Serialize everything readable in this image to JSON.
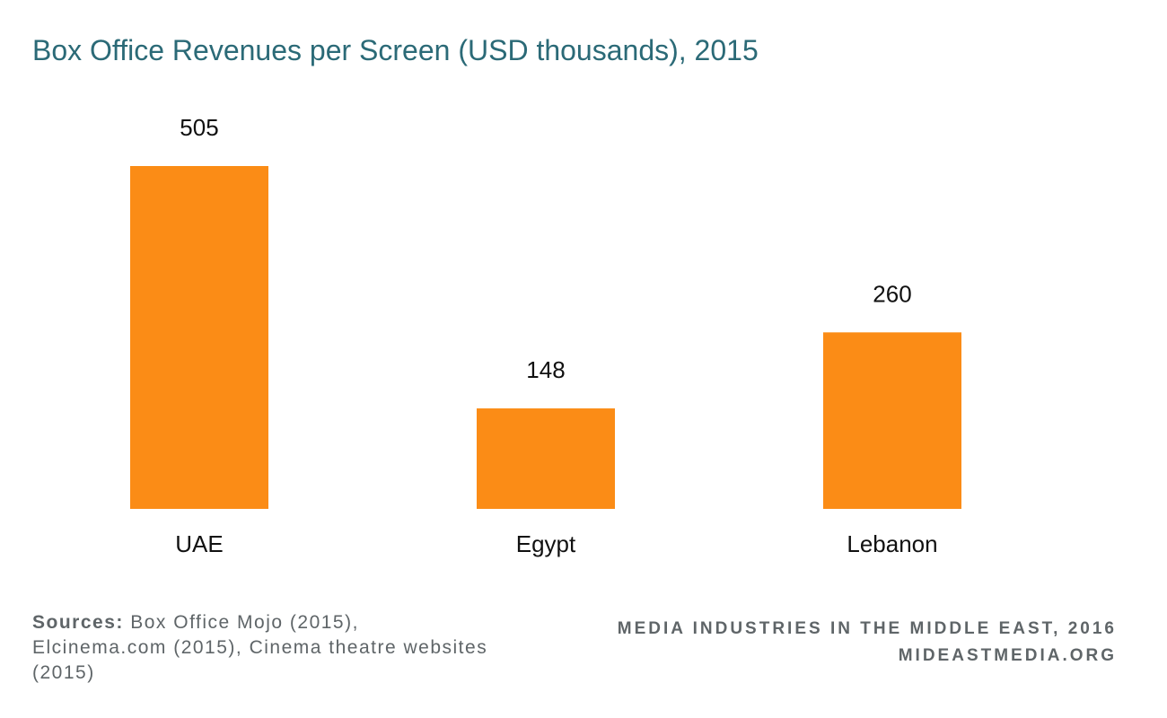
{
  "chart_data": {
    "type": "bar",
    "title": "Box Office Revenues per Screen (USD thousands), 2015",
    "categories": [
      "UAE",
      "Egypt",
      "Lebanon"
    ],
    "values": [
      505,
      148,
      260
    ],
    "value_labels": [
      "505",
      "148",
      "260"
    ],
    "ylim": [
      0,
      505
    ],
    "grid": false,
    "bar_color": "#fb8c16"
  },
  "footer": {
    "sources_label": "Sources:",
    "sources_text": "Box Office Mojo (2015), Elcinema.com (2015), Cinema theatre websites (2015)",
    "credit_line1": "MEDIA INDUSTRIES IN THE MIDDLE EAST, 2016",
    "credit_line2": "MIDEASTMEDIA.ORG"
  },
  "colors": {
    "title": "#2b6a77",
    "bar": "#fb8c16",
    "footer_text": "#5f6568",
    "label_text": "#111111"
  }
}
